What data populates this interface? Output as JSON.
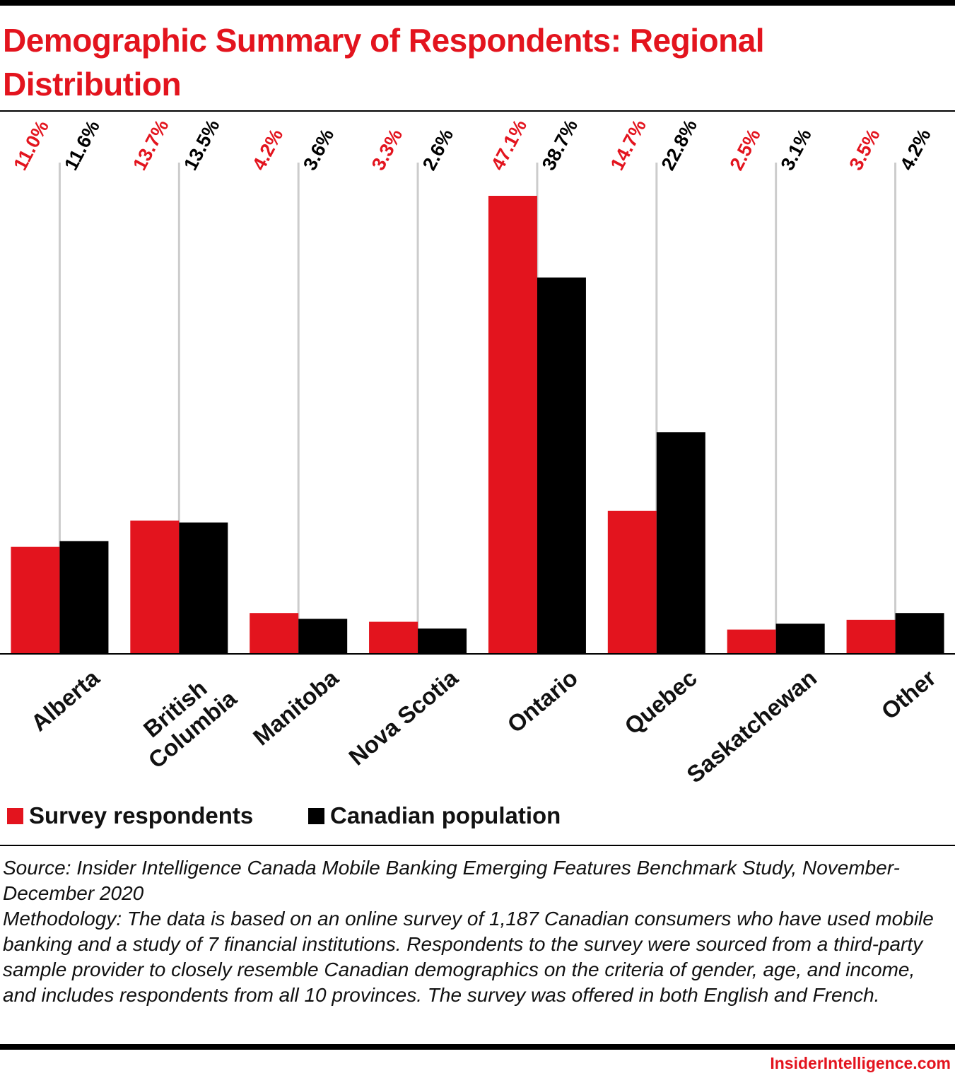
{
  "chart_data": {
    "type": "bar",
    "title": "Demographic Summary of Respondents: Regional Distribution",
    "categories": [
      "Alberta",
      "British\nColumbia",
      "Manitoba",
      "Nova Scotia",
      "Ontario",
      "Quebec",
      "Saskatchewan",
      "Other"
    ],
    "series": [
      {
        "name": "Survey respondents",
        "color": "#e3141e",
        "values": [
          11.0,
          13.7,
          4.2,
          3.3,
          47.1,
          14.7,
          2.5,
          3.5
        ],
        "value_labels": [
          "11.0%",
          "13.7%",
          "4.2%",
          "3.3%",
          "47.1%",
          "14.7%",
          "2.5%",
          "3.5%"
        ]
      },
      {
        "name": "Canadian population",
        "color": "#000000",
        "values": [
          11.6,
          13.5,
          3.6,
          2.6,
          38.7,
          22.8,
          3.1,
          4.2
        ],
        "value_labels": [
          "11.6%",
          "13.5%",
          "3.6%",
          "2.6%",
          "38.7%",
          "22.8%",
          "3.1%",
          "4.2%"
        ]
      }
    ],
    "source": "Source: Insider Intelligence Canada Mobile Banking Emerging Features Benchmark Study, November-December 2020",
    "methodology": "Methodology: The data is based on an online survey of 1,187 Canadian consumers who have used mobile banking and a study of 7 financial institutions. Respondents to the survey were sourced from a third-party sample provider to closely resemble Canadian demographics on the criteria of gender, age, and income, and includes respondents from all 10 provinces. The survey was offered in both English and French.",
    "footer": "InsiderIntelligence.com"
  }
}
